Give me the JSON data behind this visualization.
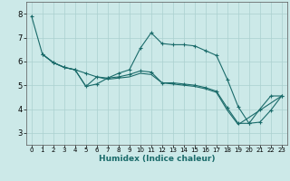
{
  "title": "",
  "xlabel": "Humidex (Indice chaleur)",
  "background_color": "#cce9e8",
  "grid_color": "#aad0cf",
  "line_color": "#1a6b6a",
  "xlim": [
    -0.5,
    23.5
  ],
  "ylim": [
    2.5,
    8.5
  ],
  "xticks": [
    0,
    1,
    2,
    3,
    4,
    5,
    6,
    7,
    8,
    9,
    10,
    11,
    12,
    13,
    14,
    15,
    16,
    17,
    18,
    19,
    20,
    21,
    22,
    23
  ],
  "yticks": [
    3,
    4,
    5,
    6,
    7,
    8
  ],
  "line1_x": [
    0,
    1,
    2,
    3,
    4,
    5,
    6,
    7,
    8,
    9,
    10,
    11,
    12,
    13,
    14,
    15,
    16,
    17,
    18,
    19,
    20,
    21,
    22,
    23
  ],
  "line1_y": [
    7.9,
    6.3,
    5.95,
    5.75,
    5.65,
    5.5,
    5.35,
    5.3,
    5.5,
    5.65,
    6.55,
    7.2,
    6.75,
    6.7,
    6.7,
    6.65,
    6.45,
    6.25,
    5.25,
    4.1,
    3.4,
    3.45,
    3.95,
    4.55
  ],
  "line2_x": [
    1,
    2,
    3,
    4,
    5,
    6,
    7,
    8,
    9,
    10,
    11,
    12,
    13,
    14,
    15,
    16,
    17,
    18,
    19,
    20,
    21,
    22,
    23
  ],
  "line2_y": [
    6.3,
    5.95,
    5.75,
    5.65,
    4.95,
    5.05,
    5.3,
    5.35,
    5.45,
    5.6,
    5.55,
    5.1,
    5.1,
    5.05,
    5.0,
    4.9,
    4.75,
    4.05,
    3.4,
    3.4,
    4.0,
    4.55,
    4.55
  ],
  "line3_x": [
    1,
    2,
    3,
    4,
    5,
    6,
    7,
    8,
    9,
    10,
    11,
    12,
    13,
    14,
    15,
    16,
    17,
    18,
    19,
    23
  ],
  "line3_y": [
    6.3,
    5.95,
    5.75,
    5.65,
    4.95,
    5.35,
    5.25,
    5.3,
    5.35,
    5.5,
    5.45,
    5.1,
    5.05,
    5.0,
    4.95,
    4.85,
    4.7,
    3.95,
    3.35,
    4.55
  ]
}
